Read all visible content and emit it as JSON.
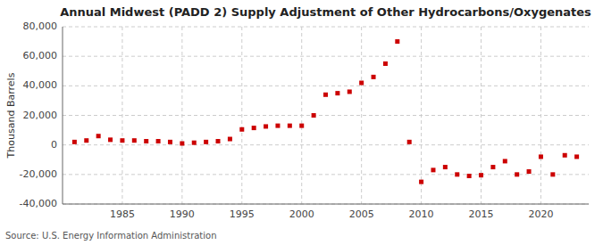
{
  "chart_data": {
    "type": "scatter",
    "title": "Annual Midwest (PADD 2) Supply Adjustment of Other Hydrocarbons/Oxygenates",
    "ylabel": "Thousand Barrels",
    "source": "Source: U.S. Energy Information Administration",
    "x": [
      1981,
      1982,
      1983,
      1984,
      1985,
      1986,
      1987,
      1988,
      1989,
      1990,
      1991,
      1992,
      1993,
      1994,
      1995,
      1996,
      1997,
      1998,
      1999,
      2000,
      2001,
      2002,
      2003,
      2004,
      2005,
      2006,
      2007,
      2008,
      2009,
      2010,
      2011,
      2012,
      2013,
      2014,
      2015,
      2016,
      2017,
      2018,
      2019,
      2020,
      2021,
      2022,
      2023
    ],
    "values": [
      2000,
      3000,
      6000,
      3500,
      3000,
      3000,
      2500,
      2500,
      2000,
      1000,
      1500,
      2000,
      2500,
      4000,
      10500,
      11500,
      12500,
      13000,
      13000,
      13000,
      20000,
      34000,
      35000,
      36000,
      42000,
      46000,
      55000,
      70000,
      2000,
      -25000,
      -17000,
      -15000,
      -20000,
      -21000,
      -20500,
      -15000,
      -11000,
      -20000,
      -18000,
      -8000,
      -20000,
      -7000,
      -8000
    ],
    "color": "#cc0000",
    "marker": "square",
    "xlim": [
      1980,
      2024
    ],
    "xticks": [
      1985,
      1990,
      1995,
      2000,
      2005,
      2010,
      2015,
      2020
    ],
    "ylim": [
      -40000,
      80000
    ],
    "yticks": [
      {
        "value": -40000,
        "label": "-40,000"
      },
      {
        "value": -20000,
        "label": "-20,000"
      },
      0,
      {
        "value": 20000,
        "label": "20,000"
      },
      {
        "value": 40000,
        "label": "40,000"
      },
      {
        "value": 60000,
        "label": "60,000"
      },
      {
        "value": 80000,
        "label": "80,000"
      }
    ],
    "grid": true
  }
}
